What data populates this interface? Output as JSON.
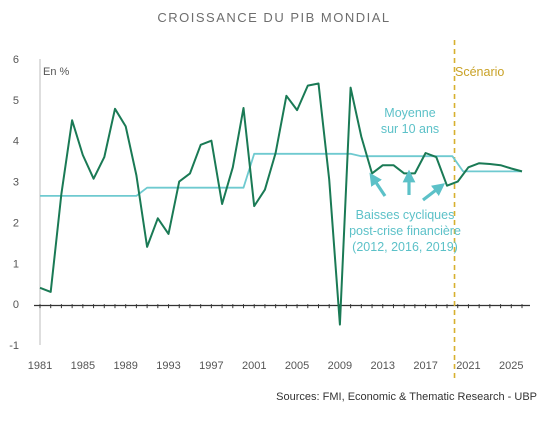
{
  "chart_data": {
    "type": "line",
    "title": "CROISSANCE DU PIB MONDIAL",
    "unit_label": "En %",
    "ylim": [
      -1,
      6
    ],
    "yticks": [
      "-1",
      "0",
      "1",
      "2",
      "3",
      "4",
      "5",
      "6"
    ],
    "xlim": [
      1981,
      2026
    ],
    "xticks": [
      "1981",
      "1985",
      "1989",
      "1993",
      "1997",
      "2001",
      "2005",
      "2009",
      "2013",
      "2017",
      "2021",
      "2025"
    ],
    "grid": false,
    "scenario_year": 2019.7,
    "scenario_label": "Scénario",
    "series": [
      {
        "role": "gdp",
        "color": "#1a7a55",
        "x": [
          1981,
          1982,
          1983,
          1984,
          1985,
          1986,
          1987,
          1988,
          1989,
          1990,
          1991,
          1992,
          1993,
          1994,
          1995,
          1996,
          1997,
          1998,
          1999,
          2000,
          2001,
          2002,
          2003,
          2004,
          2005,
          2006,
          2007,
          2008,
          2009,
          2010,
          2011,
          2012,
          2013,
          2014,
          2015,
          2016,
          2017,
          2018,
          2019,
          2020,
          2021,
          2022,
          2023,
          2024,
          2025,
          2026
        ],
        "values": [
          0.4,
          0.3,
          2.7,
          4.5,
          3.65,
          3.07,
          3.6,
          4.78,
          4.35,
          3.15,
          1.4,
          2.1,
          1.72,
          3.0,
          3.2,
          3.9,
          4.0,
          2.45,
          3.35,
          4.8,
          2.4,
          2.8,
          3.7,
          5.1,
          4.75,
          5.35,
          5.4,
          3.05,
          -0.5,
          5.3,
          4.1,
          3.2,
          3.4,
          3.4,
          3.2,
          3.2,
          3.7,
          3.6,
          2.9,
          3.0,
          3.35,
          3.45,
          3.43,
          3.4,
          3.32,
          3.25
        ]
      },
      {
        "role": "ten-year-average",
        "color": "#6fcad0",
        "x": [
          1981,
          1990,
          1991,
          2000,
          2001,
          2010,
          2011,
          2019.5,
          2020.5,
          2026
        ],
        "values": [
          2.65,
          2.65,
          2.85,
          2.85,
          3.68,
          3.68,
          3.62,
          3.62,
          3.25,
          3.25
        ]
      }
    ],
    "annotations": [
      {
        "lines": [
          "Moyenne",
          "sur 10 ans"
        ]
      },
      {
        "lines": [
          "Baisses cycliques",
          "post-crise financière",
          "(2012, 2016, 2019)"
        ]
      }
    ],
    "source": "Sources: FMI, Economic & Thematic Research - UBP"
  }
}
